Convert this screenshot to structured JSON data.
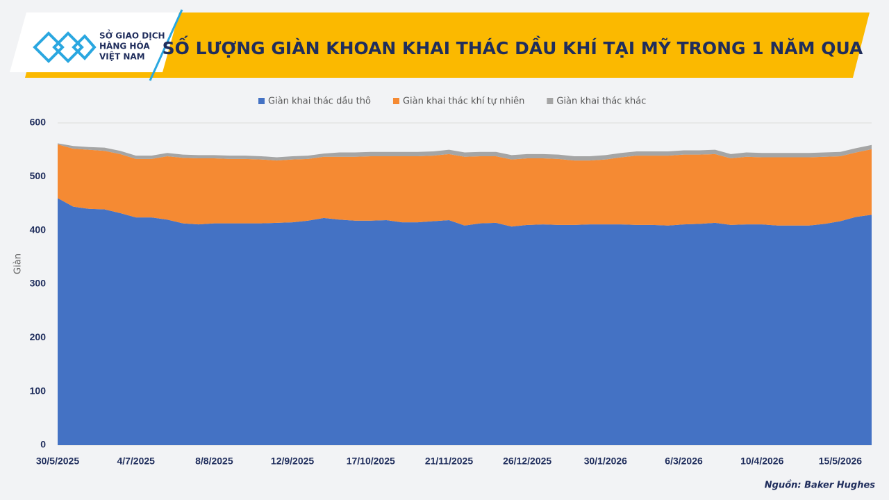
{
  "logo": {
    "lines": [
      "SỞ GIAO DỊCH",
      "HÀNG HÓA",
      "VIỆT NAM"
    ]
  },
  "source": "Nguồn: Baker Hughes",
  "chart_data": {
    "type": "stacked_area",
    "title": "SỐ LƯỢNG GIÀN KHOAN KHAI THÁC DẦU KHÍ TẠI MỸ TRONG 1 NĂM QUA",
    "y_label": "Giàn",
    "categories": [
      "30/5/2025",
      null,
      null,
      null,
      null,
      "4/7/2025",
      null,
      null,
      null,
      null,
      "8/8/2025",
      null,
      null,
      null,
      null,
      "12/9/2025",
      null,
      null,
      null,
      null,
      "17/10/2025",
      null,
      null,
      null,
      null,
      "21/11/2025",
      null,
      null,
      null,
      null,
      "26/12/2025",
      null,
      null,
      null,
      null,
      "30/1/2026",
      null,
      null,
      null,
      null,
      "6/3/2026",
      null,
      null,
      null,
      null,
      "10/4/2026",
      null,
      null,
      null,
      null,
      "15/5/2026",
      null,
      null
    ],
    "series": [
      {
        "name": "Giàn khai thác dầu thô",
        "color": "#4472c4",
        "values": [
          460,
          444,
          440,
          439,
          432,
          424,
          424,
          420,
          413,
          411,
          413,
          413,
          413,
          413,
          414,
          415,
          418,
          423,
          420,
          418,
          418,
          419,
          415,
          415,
          417,
          419,
          409,
          413,
          414,
          407,
          410,
          411,
          410,
          410,
          411,
          411,
          411,
          410,
          410,
          409,
          411,
          412,
          414,
          410,
          411,
          411,
          409,
          409,
          409,
          412,
          417,
          425,
          429
        ]
      },
      {
        "name": "Giàn khai thác khí tự nhiên",
        "color": "#f58a33",
        "values": [
          100,
          108,
          110,
          109,
          110,
          109,
          109,
          118,
          122,
          123,
          121,
          120,
          120,
          119,
          116,
          117,
          115,
          114,
          117,
          119,
          120,
          119,
          123,
          123,
          122,
          123,
          128,
          125,
          124,
          125,
          124,
          123,
          123,
          120,
          119,
          121,
          125,
          129,
          129,
          130,
          130,
          129,
          128,
          124,
          126,
          125,
          127,
          127,
          127,
          125,
          121,
          120,
          122
        ]
      },
      {
        "name": "Giàn khai thác khác",
        "color": "#a5a5a5",
        "values": [
          2,
          5,
          5,
          6,
          6,
          6,
          6,
          6,
          6,
          6,
          6,
          6,
          6,
          6,
          6,
          6,
          6,
          6,
          8,
          8,
          8,
          8,
          8,
          8,
          8,
          8,
          8,
          8,
          8,
          8,
          8,
          8,
          8,
          8,
          8,
          8,
          8,
          8,
          8,
          8,
          8,
          8,
          8,
          8,
          8,
          8,
          8,
          8,
          8,
          8,
          8,
          8,
          8
        ]
      }
    ],
    "ylim": [
      0,
      600
    ],
    "yticks": [
      0,
      100,
      200,
      300,
      400,
      500,
      600
    ],
    "grid": true
  }
}
